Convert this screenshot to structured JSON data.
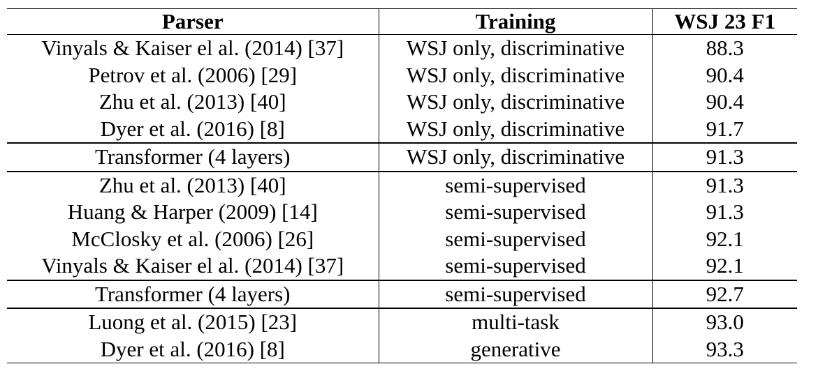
{
  "table": {
    "headers": {
      "parser": "Parser",
      "training": "Training",
      "f1": "WSJ 23 F1"
    },
    "rows": [
      {
        "parser": "Vinyals & Kaiser el al. (2014) [37]",
        "training": "WSJ only, discriminative",
        "f1": "88.3"
      },
      {
        "parser": "Petrov et al. (2006) [29]",
        "training": "WSJ only, discriminative",
        "f1": "90.4"
      },
      {
        "parser": "Zhu et al. (2013) [40]",
        "training": "WSJ only, discriminative",
        "f1": "90.4"
      },
      {
        "parser": "Dyer et al. (2016) [8]",
        "training": "WSJ only, discriminative",
        "f1": "91.7"
      },
      {
        "parser": "Transformer (4 layers)",
        "training": "WSJ only, discriminative",
        "f1": "91.3"
      },
      {
        "parser": "Zhu et al. (2013) [40]",
        "training": "semi-supervised",
        "f1": "91.3"
      },
      {
        "parser": "Huang & Harper (2009) [14]",
        "training": "semi-supervised",
        "f1": "91.3"
      },
      {
        "parser": "McClosky et al. (2006) [26]",
        "training": "semi-supervised",
        "f1": "92.1"
      },
      {
        "parser": "Vinyals & Kaiser el al. (2014) [37]",
        "training": "semi-supervised",
        "f1": "92.1"
      },
      {
        "parser": "Transformer (4 layers)",
        "training": "semi-supervised",
        "f1": "92.7"
      },
      {
        "parser": "Luong et al. (2015) [23]",
        "training": "multi-task",
        "f1": "93.0"
      },
      {
        "parser": "Dyer et al. (2016) [8]",
        "training": "generative",
        "f1": "93.3"
      }
    ]
  }
}
